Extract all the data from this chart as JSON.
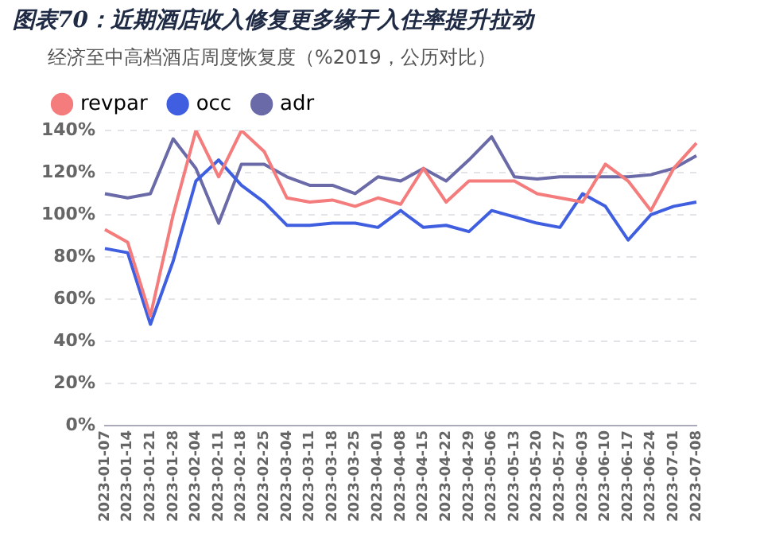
{
  "chart_data": {
    "type": "line",
    "title": "图表70：近期酒店收入修复更多缘于入住率提升拉动",
    "subtitle": "经济至中高档酒店周度恢复度（%2019，公历对比）",
    "categories": [
      "2023-01-07",
      "2023-01-14",
      "2023-01-21",
      "2023-01-28",
      "2023-02-04",
      "2023-02-11",
      "2023-02-18",
      "2023-02-25",
      "2023-03-04",
      "2023-03-11",
      "2023-03-18",
      "2023-03-25",
      "2023-04-01",
      "2023-04-08",
      "2023-04-15",
      "2023-04-22",
      "2023-04-29",
      "2023-05-06",
      "2023-05-13",
      "2023-05-20",
      "2023-05-27",
      "2023-06-03",
      "2023-06-10",
      "2023-06-17",
      "2023-06-24",
      "2023-07-01",
      "2023-07-08"
    ],
    "series": [
      {
        "name": "revpar",
        "color": "#f47c7c",
        "values": [
          93,
          87,
          52,
          100,
          140,
          118,
          140,
          130,
          108,
          106,
          107,
          104,
          108,
          105,
          122,
          106,
          116,
          116,
          116,
          110,
          108,
          106,
          124,
          116,
          102,
          122,
          134
        ]
      },
      {
        "name": "occ",
        "color": "#3f5fe0",
        "values": [
          84,
          82,
          48,
          78,
          116,
          126,
          114,
          106,
          95,
          95,
          96,
          96,
          94,
          102,
          94,
          95,
          92,
          102,
          99,
          96,
          94,
          110,
          104,
          88,
          100,
          104,
          106
        ]
      },
      {
        "name": "adr",
        "color": "#6a6aa8",
        "values": [
          110,
          108,
          110,
          136,
          122,
          96,
          124,
          124,
          118,
          114,
          114,
          110,
          118,
          116,
          122,
          116,
          126,
          137,
          118,
          117,
          118,
          118,
          118,
          118,
          119,
          122,
          128
        ]
      }
    ],
    "ylim": [
      0,
      140
    ],
    "yticks": [
      {
        "value": 0,
        "label": "0%"
      },
      {
        "value": 20,
        "label": "20%"
      },
      {
        "value": 40,
        "label": "40%"
      },
      {
        "value": 60,
        "label": "60%"
      },
      {
        "value": 80,
        "label": "80%"
      },
      {
        "value": 100,
        "label": "100%"
      },
      {
        "value": 120,
        "label": "120%"
      },
      {
        "value": 140,
        "label": "140%"
      }
    ],
    "grid": "y",
    "legend": "top left",
    "marker": "none",
    "line_style": "solid"
  }
}
